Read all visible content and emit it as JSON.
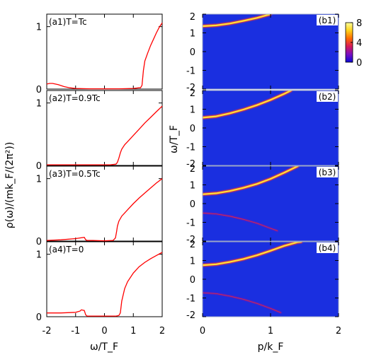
{
  "chart_data": [
    {
      "type": "line",
      "panels": [
        {
          "label": "(a1)T=Tc",
          "x": [
            -2,
            -1.9,
            -1.8,
            -1.6,
            -1.4,
            -1.2,
            -1.0,
            -0.5,
            0,
            0.5,
            1.0,
            1.2,
            1.25,
            1.3,
            1.35,
            1.4,
            1.5,
            1.6,
            1.7,
            1.8,
            1.9,
            2.0
          ],
          "y": [
            0.08,
            0.09,
            0.09,
            0.07,
            0.04,
            0.02,
            0.01,
            0.005,
            0.005,
            0.005,
            0.01,
            0.02,
            0.02,
            0.06,
            0.3,
            0.45,
            0.58,
            0.7,
            0.8,
            0.9,
            0.99,
            1.06
          ]
        },
        {
          "label": "(a2)T=0.9Tc",
          "x": [
            -2,
            -1.5,
            -1.0,
            -0.5,
            0,
            0.2,
            0.4,
            0.45,
            0.5,
            0.55,
            0.6,
            0.7,
            0.8,
            1.0,
            1.2,
            1.4,
            1.6,
            1.8,
            2.0
          ],
          "y": [
            0.01,
            0.01,
            0.01,
            0.01,
            0.01,
            0.01,
            0.02,
            0.05,
            0.12,
            0.2,
            0.26,
            0.33,
            0.38,
            0.48,
            0.58,
            0.68,
            0.77,
            0.86,
            0.95
          ]
        },
        {
          "label": "(a3)T=0.5Tc",
          "x": [
            -2,
            -1.5,
            -1.0,
            -0.7,
            -0.65,
            -0.6,
            -0.4,
            0,
            0.3,
            0.38,
            0.42,
            0.45,
            0.5,
            0.6,
            0.8,
            1.0,
            1.2,
            1.4,
            1.6,
            1.8,
            2.0
          ],
          "y": [
            0.01,
            0.02,
            0.04,
            0.06,
            0.02,
            0.01,
            0.01,
            0.005,
            0.01,
            0.05,
            0.15,
            0.24,
            0.32,
            0.4,
            0.5,
            0.6,
            0.69,
            0.77,
            0.85,
            0.93,
            1.0
          ]
        },
        {
          "label": "(a4)T=0",
          "x": [
            -2,
            -1.5,
            -1.0,
            -0.85,
            -0.8,
            -0.7,
            -0.65,
            -0.6,
            -0.3,
            0,
            0.4,
            0.5,
            0.55,
            0.6,
            0.7,
            0.8,
            1.0,
            1.2,
            1.4,
            1.6,
            1.8,
            2.0
          ],
          "y": [
            0.06,
            0.06,
            0.07,
            0.09,
            0.11,
            0.1,
            0.03,
            0.01,
            0.01,
            0.01,
            0.01,
            0.02,
            0.06,
            0.25,
            0.45,
            0.56,
            0.7,
            0.8,
            0.87,
            0.93,
            0.98,
            1.03
          ]
        }
      ],
      "xlabel": "ω/T_F",
      "ylabel": "ρ(ω)/(mk_F/(2π²))",
      "xlim": [
        -2,
        2
      ],
      "xticks": [
        "-2",
        "-1",
        "0",
        "1",
        "2"
      ],
      "ylim": [
        0,
        1.2
      ],
      "yticks": [
        "0",
        "1"
      ],
      "color": "#ff0000",
      "grid": false
    },
    {
      "type": "heatmap",
      "panels": [
        {
          "label": "(b1)",
          "upper_branch": {
            "p": [
              0,
              0.2,
              0.4,
              0.6,
              0.8,
              1.0
            ],
            "omega": [
              1.36,
              1.4,
              1.5,
              1.64,
              1.8,
              2.0
            ]
          },
          "lower_branch": null
        },
        {
          "label": "(b2)",
          "upper_branch": {
            "p": [
              0,
              0.2,
              0.4,
              0.6,
              0.8,
              1.0,
              1.2,
              1.3
            ],
            "omega": [
              0.55,
              0.62,
              0.78,
              0.98,
              1.22,
              1.5,
              1.82,
              2.0
            ]
          },
          "lower_branch": null
        },
        {
          "label": "(b3)",
          "upper_branch": {
            "p": [
              0,
              0.2,
              0.4,
              0.6,
              0.8,
              1.0,
              1.2,
              1.4
            ],
            "omega": [
              0.5,
              0.55,
              0.67,
              0.84,
              1.05,
              1.32,
              1.65,
              2.0
            ]
          },
          "lower_branch": {
            "p": [
              0,
              0.2,
              0.4,
              0.6,
              0.8,
              1.0,
              1.1
            ],
            "omega": [
              -0.5,
              -0.55,
              -0.67,
              -0.84,
              -1.05,
              -1.32,
              -1.45
            ]
          }
        },
        {
          "label": "(b4)",
          "upper_branch": {
            "p": [
              0,
              0.2,
              0.4,
              0.6,
              0.8,
              1.0,
              1.2,
              1.4,
              1.45
            ],
            "omega": [
              0.75,
              0.8,
              0.92,
              1.08,
              1.28,
              1.52,
              1.78,
              1.98,
              2.0
            ]
          },
          "lower_branch": {
            "p": [
              0,
              0.2,
              0.4,
              0.6,
              0.8,
              1.0,
              1.15
            ],
            "omega": [
              -0.72,
              -0.77,
              -0.9,
              -1.07,
              -1.29,
              -1.56,
              -1.78
            ]
          }
        }
      ],
      "xlabel": "p/k_F",
      "ylabel": "ω/T_F",
      "xlim": [
        0,
        2
      ],
      "xticks": [
        "0",
        "1",
        "2"
      ],
      "ylim": [
        -2,
        2
      ],
      "yticks": [
        "-2",
        "-1",
        "0",
        "1",
        "2"
      ],
      "colorbar": {
        "min": 0,
        "max": 8,
        "ticks": [
          "8",
          "4",
          "0"
        ],
        "stops": [
          "#0a0ad8",
          "#7a0fc2",
          "#d61a5a",
          "#ff6a00",
          "#ffd21a",
          "#ffff99"
        ]
      },
      "background": "#1a2fe0"
    }
  ]
}
